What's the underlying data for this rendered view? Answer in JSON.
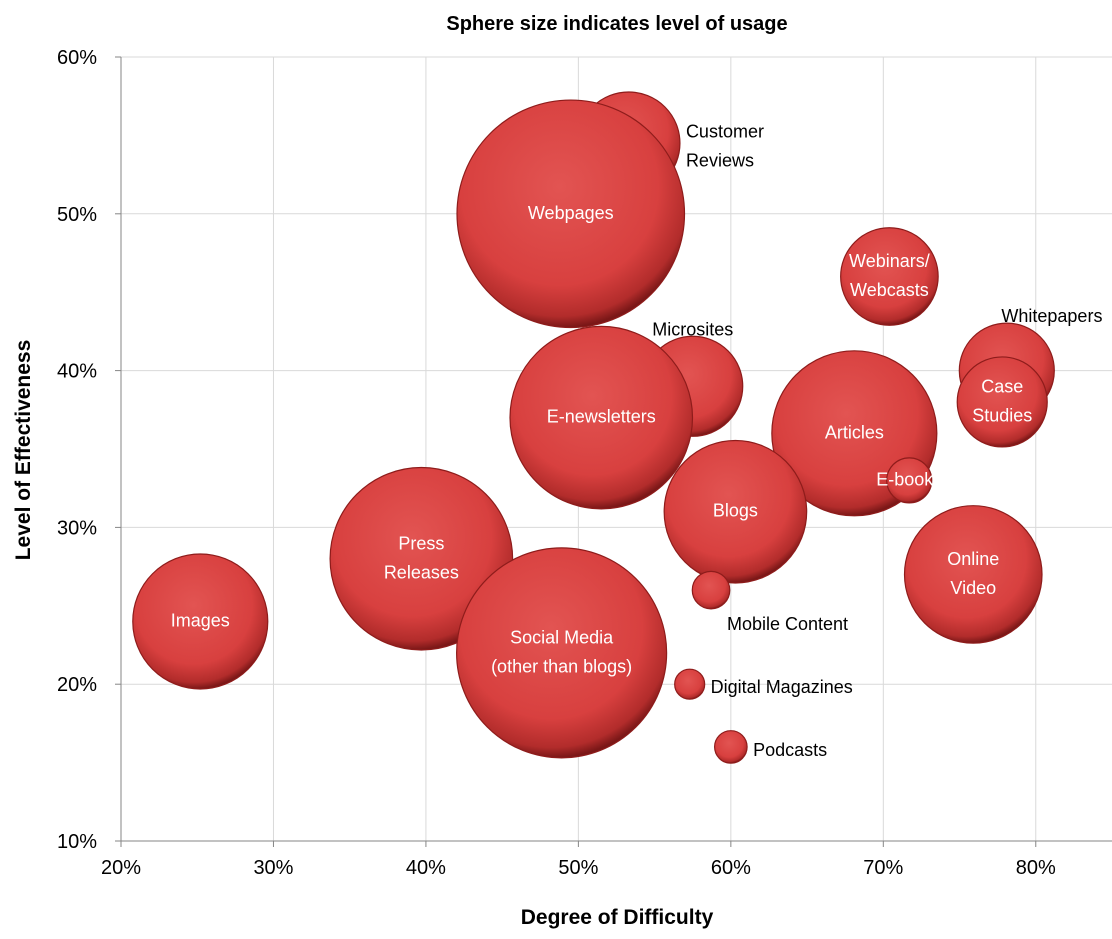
{
  "chart_data": {
    "type": "bubble",
    "title": "Sphere size indicates level of usage",
    "xlabel": "Degree of Difficulty",
    "ylabel": "Level of Effectiveness",
    "xlim": [
      0.2,
      0.85
    ],
    "ylim": [
      0.1,
      0.6
    ],
    "x_ticks": [
      0.2,
      0.3,
      0.4,
      0.5,
      0.6,
      0.7,
      0.8
    ],
    "x_tick_labels": [
      "20%",
      "30%",
      "40%",
      "50%",
      "60%",
      "70%",
      "80%"
    ],
    "y_ticks": [
      0.1,
      0.2,
      0.3,
      0.4,
      0.5,
      0.6
    ],
    "y_tick_labels": [
      "10%",
      "20%",
      "30%",
      "40%",
      "50%",
      "60%"
    ],
    "grid": "vertical and horizontal",
    "bubble_color": "#d8403f",
    "bubble_dark": "#8e1c1b",
    "points": [
      {
        "label": "Customer Reviews",
        "lines": [
          "Customer",
          "Reviews"
        ],
        "x": 0.533,
        "y": 0.545,
        "size": 0.41,
        "label_pos": "right"
      },
      {
        "label": "Webpages",
        "lines": [
          "Webpages"
        ],
        "x": 0.495,
        "y": 0.5,
        "size": 0.91,
        "label_pos": "inside"
      },
      {
        "label": "Webinars/ Webcasts",
        "lines": [
          "Webinars/",
          "Webcasts"
        ],
        "x": 0.704,
        "y": 0.46,
        "size": 0.39,
        "label_pos": "inside"
      },
      {
        "label": "Microsites",
        "lines": [
          "Microsites"
        ],
        "x": 0.575,
        "y": 0.39,
        "size": 0.4,
        "label_pos": "top"
      },
      {
        "label": "Whitepapers",
        "lines": [
          "Whitepapers"
        ],
        "x": 0.781,
        "y": 0.4,
        "size": 0.38,
        "label_pos": "top-right"
      },
      {
        "label": "E-newsletters",
        "lines": [
          "E-newsletters"
        ],
        "x": 0.515,
        "y": 0.37,
        "size": 0.73,
        "label_pos": "inside"
      },
      {
        "label": "Articles",
        "lines": [
          "Articles"
        ],
        "x": 0.681,
        "y": 0.36,
        "size": 0.66,
        "label_pos": "inside"
      },
      {
        "label": "Case Studies",
        "lines": [
          "Case",
          "Studies"
        ],
        "x": 0.778,
        "y": 0.38,
        "size": 0.36,
        "label_pos": "inside"
      },
      {
        "label": "E-books",
        "lines": [
          "E-books"
        ],
        "x": 0.717,
        "y": 0.33,
        "size": 0.18,
        "label_pos": "inside"
      },
      {
        "label": "Blogs",
        "lines": [
          "Blogs"
        ],
        "x": 0.603,
        "y": 0.31,
        "size": 0.57,
        "label_pos": "inside"
      },
      {
        "label": "Online Video",
        "lines": [
          "Online",
          "Video"
        ],
        "x": 0.759,
        "y": 0.27,
        "size": 0.55,
        "label_pos": "inside"
      },
      {
        "label": "Press Releases",
        "lines": [
          "Press",
          "Releases"
        ],
        "x": 0.397,
        "y": 0.28,
        "size": 0.73,
        "label_pos": "inside"
      },
      {
        "label": "Images",
        "lines": [
          "Images"
        ],
        "x": 0.252,
        "y": 0.24,
        "size": 0.54,
        "label_pos": "inside"
      },
      {
        "label": "Mobile Content",
        "lines": [
          "Mobile Content"
        ],
        "x": 0.587,
        "y": 0.26,
        "size": 0.15,
        "label_pos": "bottom-right"
      },
      {
        "label": "Social Media (other than blogs)",
        "lines": [
          "Social Media",
          "(other than blogs)"
        ],
        "x": 0.489,
        "y": 0.22,
        "size": 0.84,
        "label_pos": "inside"
      },
      {
        "label": "Digital Magazines",
        "lines": [
          "Digital Magazines"
        ],
        "x": 0.573,
        "y": 0.2,
        "size": 0.12,
        "label_pos": "right"
      },
      {
        "label": "Podcasts",
        "lines": [
          "Podcasts"
        ],
        "x": 0.6,
        "y": 0.16,
        "size": 0.13,
        "label_pos": "right"
      }
    ]
  }
}
